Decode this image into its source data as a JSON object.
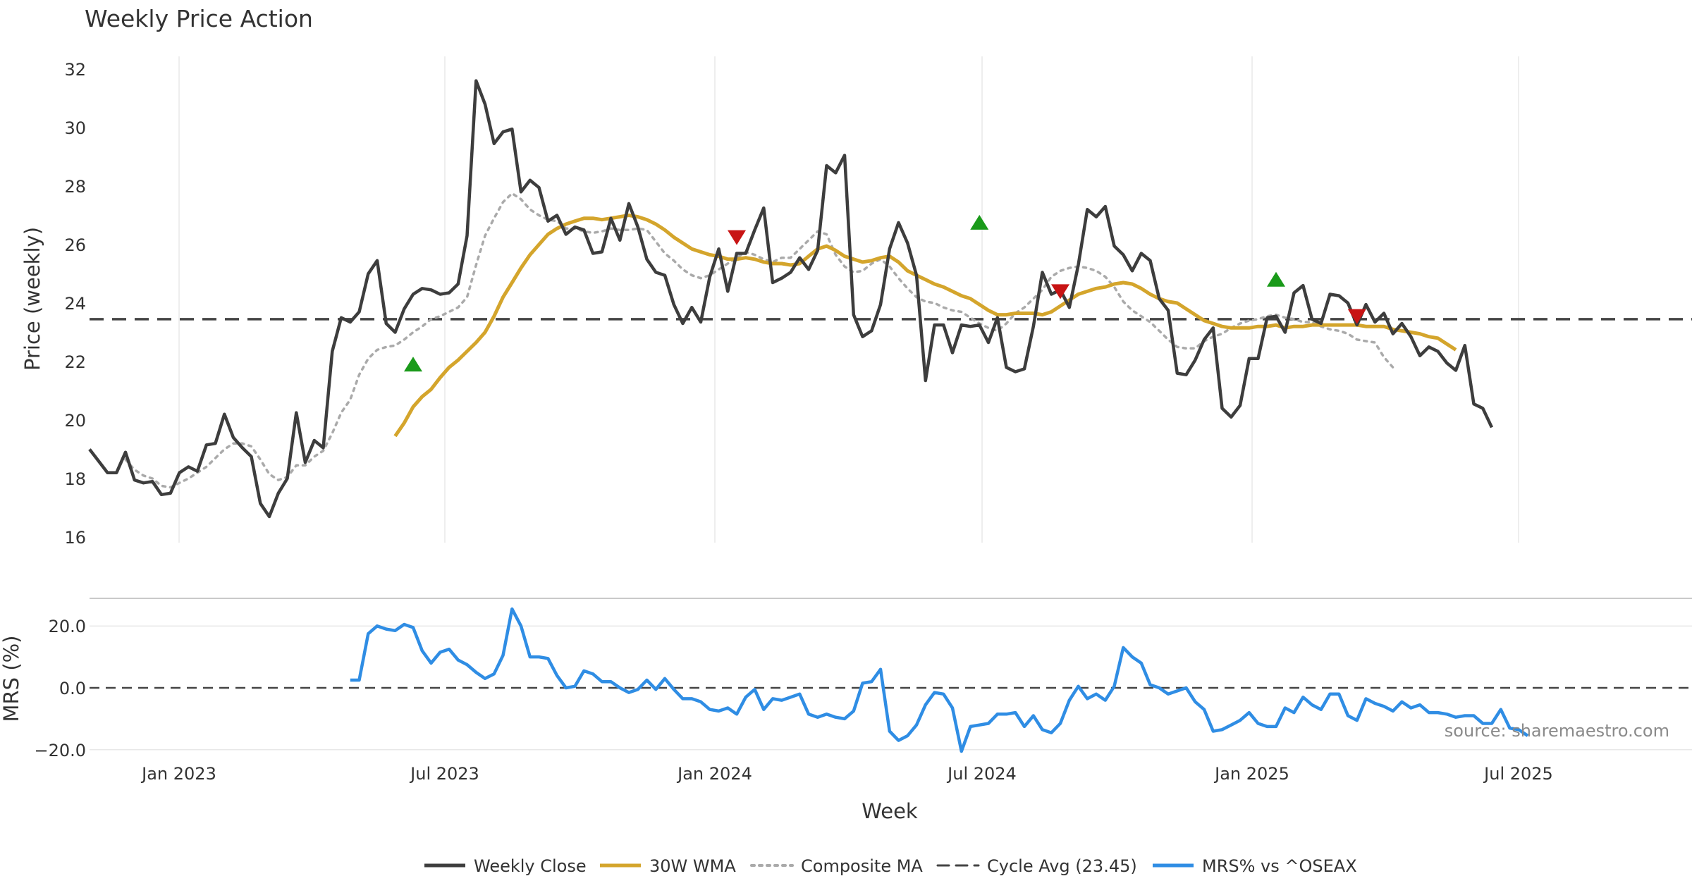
{
  "chart_data": {
    "type": "line",
    "title": "Weekly Price Action",
    "xlabel": "Week",
    "source": "source: sharemaestro.com",
    "x_ticks": [
      "Jan 2023",
      "Jul 2023",
      "Jan 2024",
      "Jul 2024",
      "Jan 2025",
      "Jul 2025"
    ],
    "legend": [
      "Weekly Close",
      "30W WMA",
      "Composite MA",
      "Cycle Avg (23.45)",
      "MRS% vs ^OSEAX"
    ],
    "colors": {
      "close": "#3d3d3d",
      "wma": "#d4a52c",
      "composite": "#aaaaaa",
      "cycle": "#444444",
      "mrs": "#2f8de4",
      "buy": "#1a9a1a",
      "sell": "#c81414",
      "grid": "#e8e8e8"
    },
    "price_panel": {
      "ylabel": "Price (weekly)",
      "ylim": [
        16,
        32.6
      ],
      "yticks": [
        16,
        18,
        20,
        22,
        24,
        26,
        28,
        30,
        32
      ],
      "cycle_avg": 23.45,
      "weekly_close": [
        19.0,
        18.6,
        18.2,
        18.2,
        18.9,
        17.95,
        17.85,
        17.9,
        17.45,
        17.5,
        18.2,
        18.4,
        18.25,
        19.15,
        19.2,
        20.2,
        19.4,
        19.05,
        18.75,
        17.15,
        16.7,
        17.5,
        18.0,
        20.25,
        18.55,
        19.3,
        19.05,
        22.35,
        23.5,
        23.35,
        23.7,
        25.0,
        25.45,
        23.3,
        23.0,
        23.8,
        24.3,
        24.5,
        24.45,
        24.3,
        24.35,
        24.65,
        26.3,
        31.6,
        30.8,
        29.45,
        29.85,
        29.95,
        27.8,
        28.2,
        27.95,
        26.8,
        27.0,
        26.35,
        26.6,
        26.5,
        25.7,
        25.75,
        26.9,
        26.15,
        27.4,
        26.6,
        25.5,
        25.05,
        24.95,
        23.95,
        23.3,
        23.85,
        23.35,
        24.9,
        25.85,
        24.4,
        25.7,
        25.7,
        26.5,
        27.25,
        24.7,
        24.85,
        25.05,
        25.55,
        25.15,
        25.8,
        28.7,
        28.45,
        29.05,
        23.6,
        22.85,
        23.05,
        23.95,
        25.85,
        26.75,
        26.05,
        24.95,
        21.35,
        23.25,
        23.25,
        22.3,
        23.25,
        23.2,
        23.25,
        22.65,
        23.5,
        21.8,
        21.65,
        21.75,
        23.2,
        25.05,
        24.3,
        24.45,
        23.85,
        25.3,
        27.2,
        26.95,
        27.3,
        25.95,
        25.65,
        25.1,
        25.7,
        25.45,
        24.15,
        23.75,
        21.6,
        21.55,
        22.05,
        22.75,
        23.15,
        20.4,
        20.1,
        20.5,
        22.1,
        22.1,
        23.5,
        23.55,
        23.0,
        24.35,
        24.6,
        23.45,
        23.3,
        24.3,
        24.25,
        24.0,
        23.25,
        23.95,
        23.35,
        23.65,
        22.95,
        23.3,
        22.85,
        22.2,
        22.5,
        22.35,
        21.95,
        21.7,
        22.55,
        20.55,
        20.4,
        19.75
      ],
      "wma_start_index": 34,
      "wma": [
        19.45,
        19.9,
        20.45,
        20.8,
        21.05,
        21.45,
        21.8,
        22.05,
        22.35,
        22.65,
        23.0,
        23.55,
        24.2,
        24.7,
        25.2,
        25.65,
        26.0,
        26.35,
        26.55,
        26.7,
        26.8,
        26.9,
        26.9,
        26.85,
        26.9,
        26.95,
        27.0,
        26.95,
        26.85,
        26.7,
        26.5,
        26.25,
        26.05,
        25.85,
        25.75,
        25.65,
        25.6,
        25.5,
        25.5,
        25.55,
        25.5,
        25.4,
        25.35,
        25.35,
        25.3,
        25.35,
        25.6,
        25.85,
        25.95,
        25.8,
        25.6,
        25.5,
        25.4,
        25.45,
        25.55,
        25.6,
        25.4,
        25.1,
        24.95,
        24.8,
        24.65,
        24.55,
        24.4,
        24.25,
        24.15,
        23.95,
        23.75,
        23.6,
        23.6,
        23.65,
        23.65,
        23.65,
        23.6,
        23.7,
        23.9,
        24.1,
        24.3,
        24.4,
        24.5,
        24.55,
        24.65,
        24.7,
        24.65,
        24.5,
        24.3,
        24.15,
        24.05,
        24.0,
        23.8,
        23.6,
        23.4,
        23.3,
        23.2,
        23.15,
        23.15,
        23.15,
        23.2,
        23.2,
        23.25,
        23.15,
        23.2,
        23.2,
        23.25,
        23.25,
        23.25,
        23.25,
        23.25,
        23.25,
        23.2,
        23.2,
        23.2,
        23.1,
        23.05,
        23.0,
        22.95,
        22.85,
        22.8,
        22.6,
        22.4
      ],
      "composite_start_index": 4,
      "composite": [
        18.65,
        18.3,
        18.1,
        18.0,
        17.75,
        17.7,
        17.85,
        18.0,
        18.2,
        18.4,
        18.7,
        19.0,
        19.2,
        19.2,
        19.1,
        18.65,
        18.15,
        17.95,
        18.05,
        18.45,
        18.45,
        18.75,
        18.95,
        19.55,
        20.25,
        20.7,
        21.55,
        22.1,
        22.4,
        22.5,
        22.55,
        22.75,
        23.0,
        23.2,
        23.45,
        23.55,
        23.7,
        23.85,
        24.2,
        25.3,
        26.3,
        26.9,
        27.45,
        27.75,
        27.55,
        27.2,
        27.0,
        26.85,
        26.8,
        26.55,
        26.55,
        26.45,
        26.4,
        26.45,
        26.55,
        26.5,
        26.5,
        26.55,
        26.5,
        26.1,
        25.7,
        25.45,
        25.15,
        24.95,
        24.85,
        24.95,
        25.15,
        25.35,
        25.55,
        25.75,
        25.65,
        25.5,
        25.4,
        25.55,
        25.55,
        25.85,
        26.15,
        26.45,
        26.35,
        25.65,
        25.25,
        25.05,
        25.1,
        25.35,
        25.5,
        25.25,
        24.85,
        24.5,
        24.2,
        24.05,
        24.0,
        23.85,
        23.75,
        23.7,
        23.5,
        23.3,
        23.15,
        23.05,
        23.3,
        23.65,
        23.85,
        24.15,
        24.45,
        24.9,
        25.1,
        25.2,
        25.25,
        25.2,
        25.1,
        24.9,
        24.55,
        24.05,
        23.75,
        23.55,
        23.35,
        23.05,
        22.75,
        22.5,
        22.45,
        22.45,
        22.7,
        22.85,
        22.95,
        23.15,
        23.3,
        23.4,
        23.45,
        23.55,
        23.6,
        23.5,
        23.45,
        23.35,
        23.35,
        23.2,
        23.1,
        23.05,
        22.95,
        22.75,
        22.7,
        22.65,
        22.15,
        21.8
      ],
      "buy_signals": [
        [
          36,
          21.9
        ],
        [
          99,
          26.75
        ],
        [
          132,
          24.8
        ]
      ],
      "sell_signals": [
        [
          72,
          26.25
        ],
        [
          108,
          24.4
        ],
        [
          141,
          23.55
        ]
      ]
    },
    "mrs_panel": {
      "ylabel": "MRS (%)",
      "ylim": [
        -21,
        29
      ],
      "yticks": [
        20.0,
        0.0,
        -20.0
      ],
      "tick_labels": [
        "20.0",
        "0.0",
        "−20.0"
      ],
      "start_index": 29,
      "values": [
        2.5,
        2.5,
        17.5,
        20.0,
        19.0,
        18.5,
        20.5,
        19.5,
        12.0,
        8.0,
        11.5,
        12.5,
        9.0,
        7.5,
        5.0,
        3.0,
        4.5,
        10.5,
        25.5,
        20.0,
        10.0,
        10.0,
        9.5,
        4.0,
        0.0,
        0.5,
        5.5,
        4.5,
        2.0,
        2.0,
        0.0,
        -1.5,
        -0.5,
        2.5,
        -0.5,
        3.0,
        -0.5,
        -3.5,
        -3.5,
        -4.5,
        -7.0,
        -7.5,
        -6.5,
        -8.5,
        -3.0,
        -0.5,
        -7.0,
        -3.5,
        -4.0,
        -3.0,
        -2.0,
        -8.5,
        -9.5,
        -8.5,
        -9.5,
        -10.0,
        -7.5,
        1.5,
        2.0,
        6.0,
        -14.0,
        -17.0,
        -15.5,
        -12.0,
        -5.5,
        -1.5,
        -2.0,
        -6.5,
        -20.5,
        -12.5,
        -12.0,
        -11.5,
        -8.5,
        -8.5,
        -8.0,
        -12.5,
        -9.0,
        -13.5,
        -14.5,
        -11.5,
        -4.0,
        0.5,
        -3.5,
        -2.0,
        -4.0,
        0.5,
        13.0,
        10.0,
        8.0,
        1.0,
        0.0,
        -2.0,
        -1.0,
        0.0,
        -4.5,
        -7.0,
        -14.0,
        -13.5,
        -12.0,
        -10.5,
        -8.0,
        -11.5,
        -12.5,
        -12.5,
        -6.5,
        -8.0,
        -3.0,
        -5.5,
        -7.0,
        -2.0,
        -2.0,
        -9.0,
        -10.5,
        -3.5,
        -5.0,
        -6.0,
        -7.5,
        -4.5,
        -6.5,
        -5.5,
        -8.0,
        -8.0,
        -8.5,
        -9.5,
        -9.0,
        -9.0,
        -11.5,
        -11.5,
        -7.0,
        -13.0,
        -13.5,
        -15.5
      ]
    }
  }
}
